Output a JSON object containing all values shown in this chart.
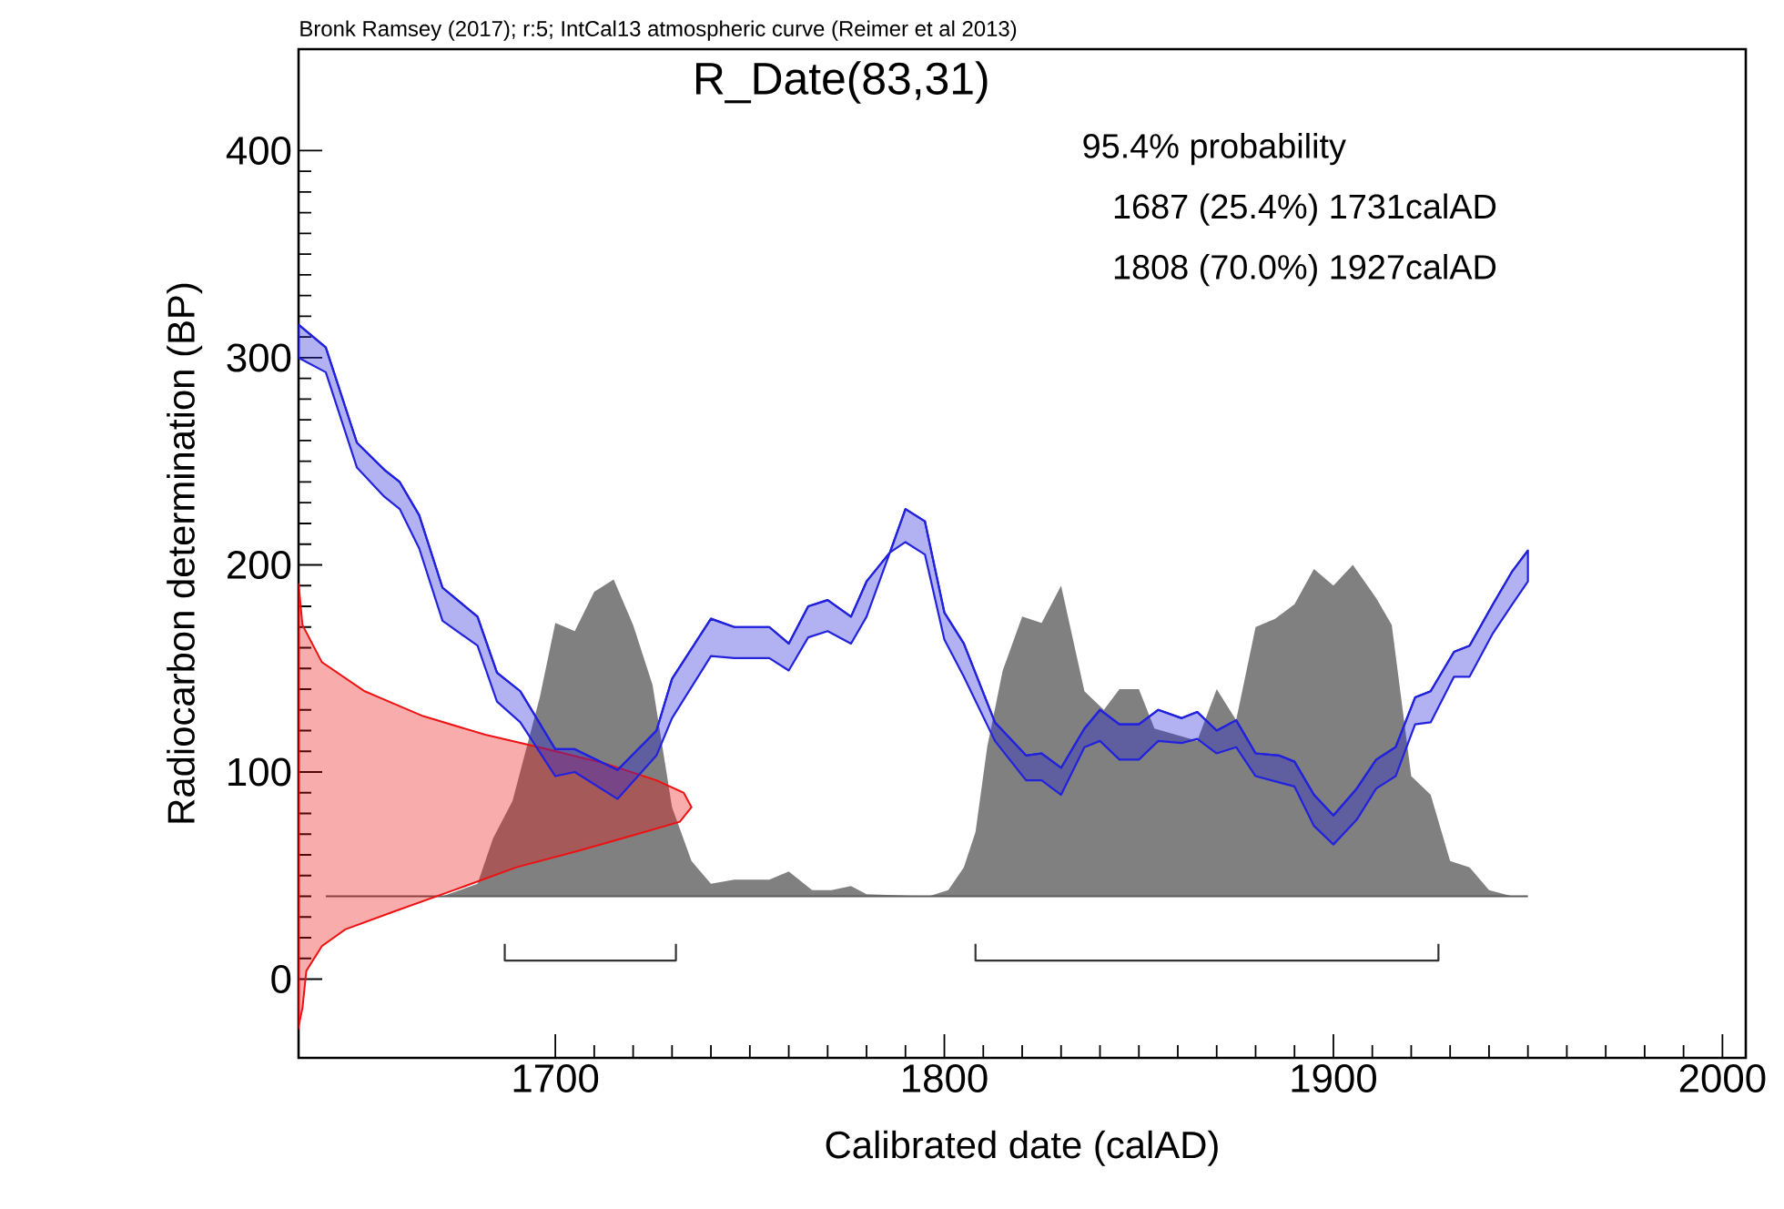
{
  "chart_data": {
    "type": "line",
    "title": "R_Date(83,31)",
    "subtitle": "Bronk Ramsey (2017); r:5; IntCal13 atmospheric curve (Reimer et al 2013)",
    "xlabel": "Calibrated date (calAD)",
    "ylabel": "Radiocarbon determination (BP)",
    "annotations": [
      "95.4% probability",
      "1687 (25.4%) 1731calAD",
      "1808 (70.0%) 1927calAD"
    ],
    "xlim": [
      1634,
      2006
    ],
    "ylim": [
      -38,
      449
    ],
    "xticks": [
      1700,
      1800,
      1900,
      2000
    ],
    "yticks": [
      0,
      100,
      200,
      300,
      400
    ],
    "series": [
      {
        "type": "area",
        "color": "#808080",
        "x": [
          1671,
          1680,
          1684,
          1689,
          1696,
          1700,
          1705,
          1710,
          1715,
          1720,
          1725,
          1730,
          1735,
          1740,
          1746,
          1755,
          1760,
          1766,
          1771,
          1776,
          1780,
          1796,
          1801,
          1805,
          1808,
          1811,
          1815,
          1820,
          1825,
          1830,
          1836,
          1841,
          1845,
          1850,
          1854,
          1865,
          1870,
          1875,
          1880,
          1885,
          1890,
          1895,
          1900,
          1905,
          1911,
          1915,
          1920,
          1925,
          1930,
          1935,
          1940,
          1946,
          1950
        ],
        "values": [
          40,
          46,
          68,
          86,
          136,
          172,
          168,
          187,
          193,
          171,
          142,
          83,
          57,
          46,
          48,
          48,
          52,
          43,
          43,
          45,
          41,
          40,
          43,
          54,
          71,
          112,
          149,
          175,
          172,
          190,
          139,
          130,
          140,
          140,
          121,
          115,
          140,
          125,
          170,
          174,
          181,
          198,
          190,
          200,
          184,
          171,
          98,
          89,
          57,
          54,
          43,
          40,
          40
        ]
      },
      {
        "type": "area",
        "color": "#ee1111",
        "x": [
          1634,
          1635,
          1640,
          1651,
          1666,
          1682,
          1698,
          1713,
          1726,
          1733,
          1735,
          1732,
          1721,
          1706,
          1690,
          1674,
          1659,
          1646,
          1640,
          1636,
          1635,
          1634
        ],
        "values": [
          191,
          171,
          153,
          139,
          127,
          118,
          111,
          104,
          96,
          90,
          83,
          76,
          70,
          62,
          54,
          43,
          33,
          24,
          16,
          4,
          -14,
          -23
        ]
      },
      {
        "type": "line",
        "color": "#2222dd",
        "x": [
          1634,
          1641,
          1649,
          1656,
          1660,
          1665,
          1671,
          1680,
          1685,
          1691,
          1700,
          1705,
          1716,
          1726,
          1730,
          1740,
          1746,
          1755,
          1760,
          1765,
          1770,
          1776,
          1780,
          1786,
          1790,
          1795,
          1800,
          1805,
          1813,
          1821,
          1825,
          1830,
          1836,
          1840,
          1845,
          1850,
          1855,
          1861,
          1865,
          1870,
          1875,
          1880,
          1886,
          1890,
          1895,
          1900,
          1906,
          1911,
          1916,
          1921,
          1925,
          1931,
          1935,
          1941,
          1946,
          1950
        ],
        "values": [
          316,
          305,
          259,
          246,
          240,
          224,
          189,
          175,
          148,
          139,
          111,
          111,
          101,
          120,
          145,
          174,
          170,
          170,
          162,
          180,
          183,
          175,
          192,
          206,
          227,
          221,
          177,
          162,
          124,
          108,
          109,
          102,
          121,
          130,
          123,
          123,
          130,
          126,
          129,
          120,
          125,
          109,
          108,
          105,
          89,
          79,
          92,
          106,
          112,
          136,
          139,
          158,
          161,
          181,
          197,
          207
        ],
        "upper": [
          316,
          305,
          259,
          246,
          240,
          224,
          189,
          175,
          148,
          139,
          111,
          111,
          101,
          120,
          145,
          174,
          170,
          170,
          162,
          180,
          183,
          175,
          192,
          206,
          227,
          221,
          177,
          162,
          124,
          108,
          109,
          102,
          121,
          130,
          123,
          123,
          130,
          126,
          129,
          120,
          125,
          109,
          108,
          105,
          89,
          79,
          92,
          106,
          112,
          136,
          139,
          158,
          161,
          181,
          197,
          207
        ],
        "lower": [
          300,
          293,
          247,
          233,
          227,
          208,
          173,
          161,
          134,
          124,
          98,
          100,
          87,
          108,
          126,
          156,
          155,
          155,
          149,
          165,
          168,
          162,
          175,
          206,
          211,
          205,
          164,
          146,
          115,
          96,
          96,
          89,
          112,
          115,
          106,
          106,
          115,
          114,
          116,
          109,
          112,
          98,
          95,
          93,
          74,
          65,
          77,
          92,
          98,
          123,
          124,
          146,
          146,
          167,
          181,
          192
        ]
      },
      {
        "color": "#333333",
        "x": [
          1687,
          1687,
          1731,
          1731,
          null,
          1808,
          1808,
          1927,
          1927
        ],
        "values": [
          17,
          9,
          9,
          17,
          null,
          17,
          9,
          9,
          17
        ]
      }
    ],
    "ref_lines": [
      {
        "axis": "y",
        "value": 40,
        "color": "#5a5a5a"
      }
    ]
  }
}
